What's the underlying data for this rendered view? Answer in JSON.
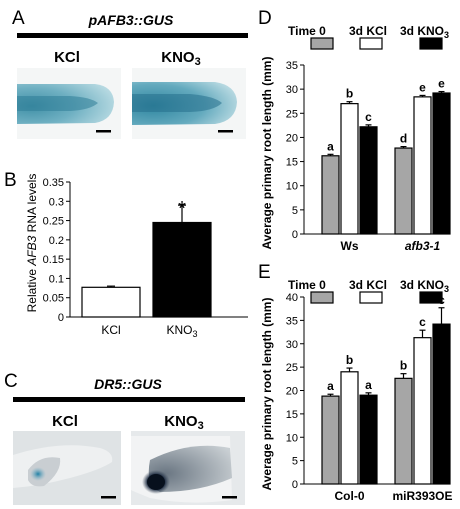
{
  "panelA": {
    "letter": "A",
    "title": "pAFB3::GUS",
    "left_label": "KCl",
    "right_label_base": "KNO",
    "right_label_sub": "3"
  },
  "panelB": {
    "letter": "B",
    "ylabel_pre": "Relative ",
    "ylabel_gene": "AFB3",
    "ylabel_post": " RNA levels",
    "significance": "*"
  },
  "panelC": {
    "letter": "C",
    "title": "DR5::GUS",
    "left_label": "KCl",
    "right_label_base": "KNO",
    "right_label_sub": "3"
  },
  "panelD": {
    "letter": "D",
    "ylabel": "Average primary root length (mm)",
    "legend": [
      {
        "label": "Time 0",
        "fill": "#a6a6a6"
      },
      {
        "label": "3d KCl",
        "fill": "#ffffff"
      },
      {
        "label": "3d KNO",
        "sub": "3",
        "fill": "#000000"
      }
    ],
    "letters": [
      [
        "a",
        "b",
        "c"
      ],
      [
        "d",
        "e",
        "e"
      ]
    ]
  },
  "panelE": {
    "letter": "E",
    "ylabel": "Average primary root length (mm)",
    "legend": [
      {
        "label": "Time 0",
        "fill": "#a6a6a6"
      },
      {
        "label": "3d KCl",
        "fill": "#ffffff"
      },
      {
        "label": "3d KNO",
        "sub": "3",
        "fill": "#000000"
      }
    ],
    "letters": [
      [
        "a",
        "b",
        "a"
      ],
      [
        "b",
        "c",
        "c"
      ]
    ]
  },
  "chart_data": [
    {
      "type": "bar",
      "id": "B",
      "categories": [
        "KCl",
        "KNO3"
      ],
      "values": [
        0.077,
        0.245
      ],
      "errors": [
        0.003,
        0.045
      ],
      "fills": [
        "#ffffff",
        "#000000"
      ],
      "ylabel": "Relative AFB3 RNA levels",
      "ylim": [
        0,
        0.35
      ],
      "yticks": [
        0,
        0.05,
        0.1,
        0.15,
        0.2,
        0.25,
        0.3,
        0.35
      ],
      "ytick_labels": [
        "0",
        "0.05",
        "0.1",
        "0.15",
        "0.2",
        "0.25",
        "0.3",
        "0.35"
      ],
      "xtick_labels": [
        {
          "base": "KCl",
          "sub": ""
        },
        {
          "base": "KNO",
          "sub": "3"
        }
      ]
    },
    {
      "type": "bar",
      "id": "D",
      "categories": [
        "Ws",
        "afb3-1"
      ],
      "series": [
        {
          "name": "Time 0",
          "values": [
            16.2,
            17.8
          ],
          "errors": [
            0.3,
            0.3
          ],
          "fill": "#a6a6a6"
        },
        {
          "name": "3d KCl",
          "values": [
            27.0,
            28.4
          ],
          "errors": [
            0.4,
            0.3
          ],
          "fill": "#ffffff"
        },
        {
          "name": "3d KNO3",
          "values": [
            22.2,
            29.2
          ],
          "errors": [
            0.4,
            0.3
          ],
          "fill": "#000000"
        }
      ],
      "ylabel": "Average primary root length (mm)",
      "ylim": [
        0,
        35
      ],
      "yticks": [
        0,
        5,
        10,
        15,
        20,
        25,
        30,
        35
      ],
      "italic_categories": [
        false,
        true
      ]
    },
    {
      "type": "bar",
      "id": "E",
      "categories": [
        "Col-0",
        "miR393OE"
      ],
      "series": [
        {
          "name": "Time 0",
          "values": [
            18.8,
            22.6
          ],
          "errors": [
            0.4,
            1.0
          ],
          "fill": "#a6a6a6"
        },
        {
          "name": "3d KCl",
          "values": [
            24.0,
            31.3
          ],
          "errors": [
            0.8,
            1.6
          ],
          "fill": "#ffffff"
        },
        {
          "name": "3d KNO3",
          "values": [
            19.0,
            34.2
          ],
          "errors": [
            0.5,
            3.5
          ],
          "fill": "#000000"
        }
      ],
      "ylabel": "Average primary root length (mm)",
      "ylim": [
        0,
        40
      ],
      "yticks": [
        0,
        5,
        10,
        15,
        20,
        25,
        30,
        35,
        40
      ],
      "italic_categories": [
        false,
        false
      ]
    }
  ]
}
